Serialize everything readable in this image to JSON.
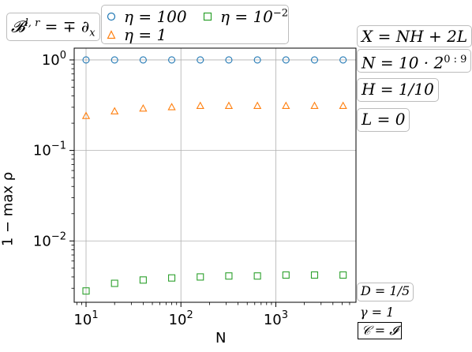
{
  "chart_data": {
    "type": "scatter",
    "xlabel": "N",
    "ylabel": "1 − max ρ",
    "xscale": "log",
    "yscale": "log",
    "xlim": [
      7.5,
      7000
    ],
    "ylim": [
      0.0021,
      1.35
    ],
    "grid": true,
    "x": [
      10,
      20,
      40,
      80,
      160,
      320,
      640,
      1280,
      2560,
      5120
    ],
    "x_ticks": [
      10,
      100,
      1000
    ],
    "x_tick_labels": [
      {
        "base": "10",
        "exp": "1"
      },
      {
        "base": "10",
        "exp": "2"
      },
      {
        "base": "10",
        "exp": "3"
      }
    ],
    "y_ticks": [
      0.01,
      0.1,
      1
    ],
    "y_tick_labels": [
      {
        "base": "10",
        "exp": "−2"
      },
      {
        "base": "10",
        "exp": "−1"
      },
      {
        "base": "10",
        "exp": "0"
      }
    ],
    "series": [
      {
        "name": "η = 100",
        "marker": "circle",
        "color": "#1f77b4",
        "values": [
          1.0,
          1.0,
          1.0,
          1.0,
          1.0,
          1.0,
          1.0,
          1.0,
          1.0,
          1.0
        ]
      },
      {
        "name": "η = 1",
        "marker": "triangle",
        "color": "#ff7f0e",
        "values": [
          0.24,
          0.27,
          0.29,
          0.3,
          0.31,
          0.31,
          0.31,
          0.31,
          0.31,
          0.31
        ]
      },
      {
        "name": "η = 10^−2",
        "marker": "square",
        "color": "#2ca02c",
        "values": [
          0.0028,
          0.0034,
          0.0037,
          0.0039,
          0.004,
          0.0041,
          0.0041,
          0.0042,
          0.0042,
          0.0042
        ]
      }
    ],
    "legend": {
      "placement": "top",
      "entries": [
        {
          "text": "η = 100"
        },
        {
          "text": "η = 1"
        },
        {
          "text": "η = 10",
          "sup": "−2"
        }
      ]
    }
  },
  "annotations": {
    "boundary": "𝓑",
    "boundary_sup": "l, r",
    "boundary_rest": " = ∓ ∂",
    "boundary_sub": "x",
    "x_formula": "X = NH + 2L",
    "n_formula": "N = 10 · 2",
    "n_formula_sup": "0 : 9",
    "h_value": "H = 1/10",
    "l_value": "L = 0",
    "d_value": "D = 1/5",
    "gamma_value": "γ = 1",
    "c_value": "𝒞 = 𝓘"
  }
}
